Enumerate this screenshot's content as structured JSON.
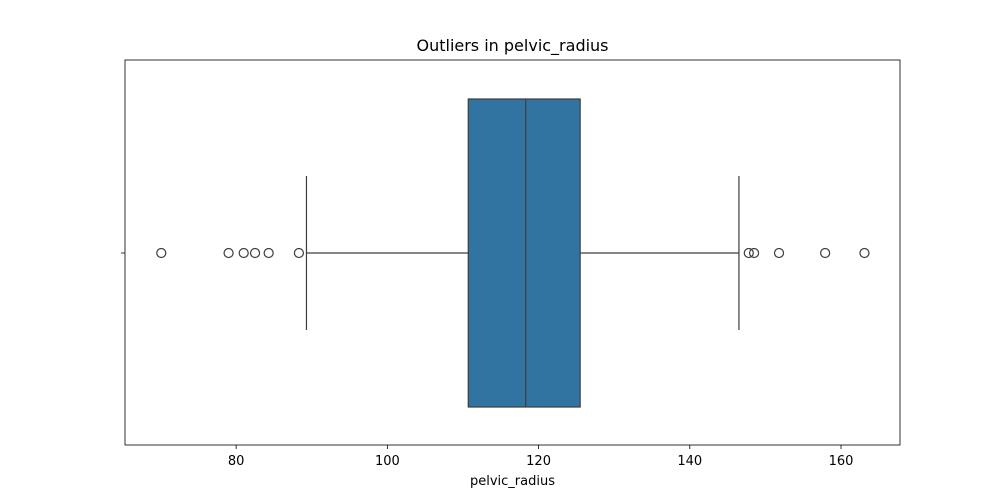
{
  "chart_data": {
    "type": "box",
    "title": "Outliers in pelvic_radius",
    "xlabel": "pelvic_radius",
    "ylabel": "",
    "xlim": [
      65.3,
      167.8
    ],
    "xticks": [
      80,
      100,
      120,
      140,
      160
    ],
    "grid": false,
    "box": {
      "whisker_low": 89.3,
      "q1": 110.7,
      "median": 118.3,
      "q3": 125.5,
      "whisker_high": 146.5
    },
    "outliers": [
      70.1,
      79.0,
      81.0,
      82.5,
      84.3,
      88.3,
      147.8,
      148.5,
      151.8,
      157.9,
      163.1
    ],
    "colors": {
      "box_fill": "#3274a1",
      "line": "#3d3d3d",
      "axis": "#000000"
    }
  }
}
